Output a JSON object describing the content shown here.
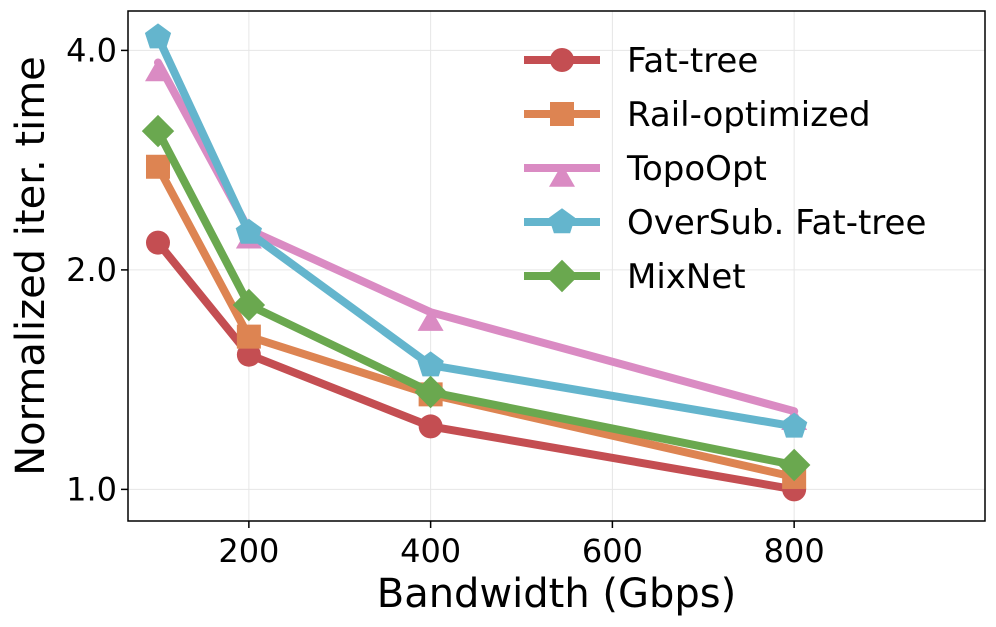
{
  "chart_data": {
    "type": "line",
    "title": "",
    "xlabel": "Bandwidth (Gbps)",
    "ylabel": "Normalized iter. time",
    "xlim": [
      67,
      1010
    ],
    "ylim": [
      0.905,
      4.53
    ],
    "y_scale": "log2",
    "grid": true,
    "legend_position": "top-right",
    "x_ticks": [
      {
        "value": 200,
        "label": "200"
      },
      {
        "value": 400,
        "label": "400"
      },
      {
        "value": 600,
        "label": "600"
      },
      {
        "value": 800,
        "label": "800"
      }
    ],
    "y_ticks": [
      {
        "value": 1.0,
        "label": "1.0"
      },
      {
        "value": 2.0,
        "label": "2.0"
      },
      {
        "value": 4.0,
        "label": "4.0"
      }
    ],
    "x": [
      100,
      200,
      400,
      800
    ],
    "series": [
      {
        "name": "Fat-tree",
        "color": "#c44e52",
        "marker": "circle",
        "values": [
          2.18,
          1.53,
          1.22,
          1.0
        ]
      },
      {
        "name": "Rail-optimized",
        "color": "#dd8452",
        "marker": "square",
        "values": [
          2.77,
          1.62,
          1.35,
          1.04
        ]
      },
      {
        "name": "TopoOpt",
        "color": "#da8bc3",
        "marker": "triangle",
        "values": [
          3.85,
          2.27,
          1.75,
          1.28
        ]
      },
      {
        "name": "OverSub. Fat-tree",
        "color": "#64b5cd",
        "marker": "pentagon",
        "values": [
          4.17,
          2.25,
          1.48,
          1.22
        ]
      },
      {
        "name": "MixNet",
        "color": "#6aa84f",
        "marker": "diamond",
        "values": [
          3.1,
          1.79,
          1.36,
          1.08
        ]
      }
    ]
  }
}
